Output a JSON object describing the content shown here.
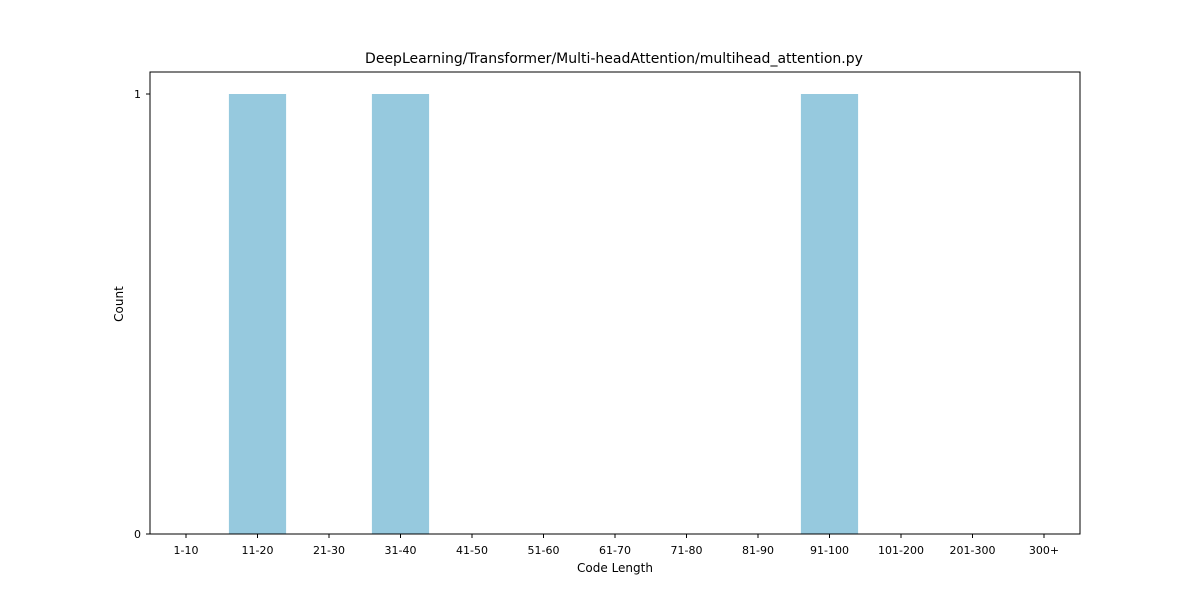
{
  "chart_data": {
    "type": "bar",
    "title": "DeepLearning/Transformer/Multi-headAttention/multihead_attention.py",
    "xlabel": "Code Length",
    "ylabel": "Count",
    "categories": [
      "1-10",
      "11-20",
      "21-30",
      "31-40",
      "41-50",
      "51-60",
      "61-70",
      "71-80",
      "81-90",
      "91-100",
      "101-200",
      "201-300",
      "300+"
    ],
    "values": [
      0,
      1,
      0,
      1,
      0,
      0,
      0,
      0,
      0,
      1,
      0,
      0,
      0
    ],
    "ylim": [
      0,
      1.05
    ],
    "yticks": [
      0,
      1
    ],
    "grid": false,
    "bar_color": "#96c9de"
  }
}
